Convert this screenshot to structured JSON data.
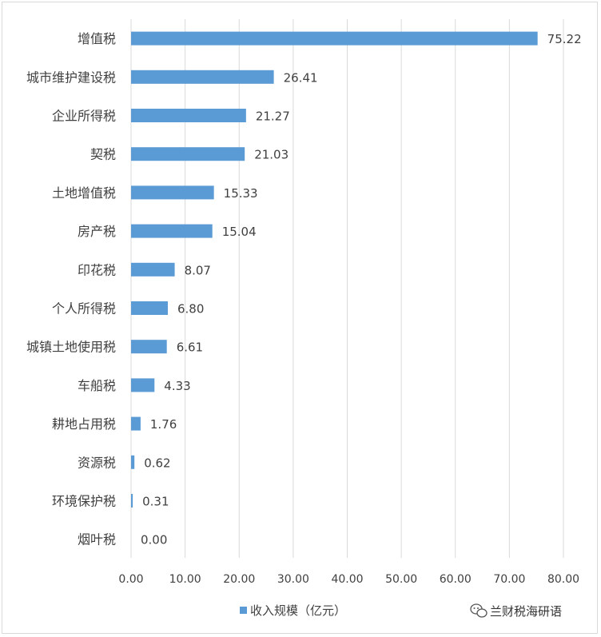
{
  "chart_data": {
    "type": "bar",
    "orientation": "horizontal",
    "categories": [
      "增值税",
      "城市维护建设税",
      "企业所得税",
      "契税",
      "土地增值税",
      "房产税",
      "印花税",
      "个人所得税",
      "城镇土地使用税",
      "车船税",
      "耕地占用税",
      "资源税",
      "环境保护税",
      "烟叶税"
    ],
    "series": [
      {
        "name": "收入规模（亿元）",
        "values": [
          75.22,
          26.41,
          21.27,
          21.03,
          15.33,
          15.04,
          8.07,
          6.8,
          6.61,
          4.33,
          1.76,
          0.62,
          0.31,
          0.0
        ],
        "color": "#5b9bd5"
      }
    ],
    "data_labels": [
      "75.22",
      "26.41",
      "21.27",
      "21.03",
      "15.33",
      "15.04",
      "8.07",
      "6.80",
      "6.61",
      "4.33",
      "1.76",
      "0.62",
      "0.31",
      "0.00"
    ],
    "x_ticks": [
      "0.00",
      "10.00",
      "20.00",
      "30.00",
      "40.00",
      "50.00",
      "60.00",
      "70.00",
      "80.00"
    ],
    "xlim": [
      0,
      80
    ],
    "grid": "vertical",
    "grid_color": "#d9d9d9",
    "legend_position": "bottom"
  },
  "watermark": {
    "text": "兰财税海研语",
    "icon": "wechat-icon"
  }
}
